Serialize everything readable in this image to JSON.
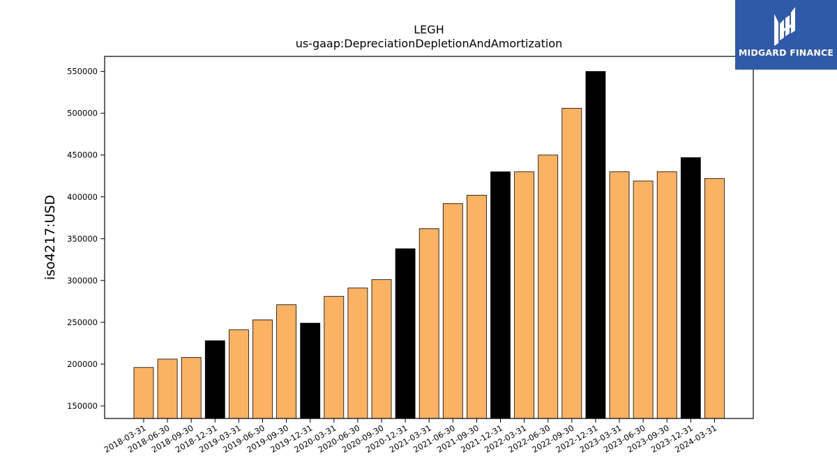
{
  "brand": {
    "name": "MIDGARD FINANCE",
    "bg_color": "#2e5aa8"
  },
  "chart_data": {
    "type": "bar",
    "title": "LEGH",
    "subtitle": "us-gaap:DepreciationDepletionAndAmortization",
    "xlabel": "",
    "ylabel": "iso4217:USD",
    "ylim": [
      135000,
      568000
    ],
    "yticks": [
      150000,
      200000,
      250000,
      300000,
      350000,
      400000,
      450000,
      500000,
      550000
    ],
    "colors": {
      "quarter": "#fbb262",
      "year_end": "#000000"
    },
    "categories": [
      "2018-03-31",
      "2018-06-30",
      "2018-09-30",
      "2018-12-31",
      "2019-03-31",
      "2019-06-30",
      "2019-09-30",
      "2019-12-31",
      "2020-03-31",
      "2020-06-30",
      "2020-09-30",
      "2020-12-31",
      "2021-03-31",
      "2021-06-30",
      "2021-09-30",
      "2021-12-31",
      "2022-03-31",
      "2022-06-30",
      "2022-09-30",
      "2022-12-31",
      "2023-03-31",
      "2023-06-30",
      "2023-09-30",
      "2023-12-31",
      "2024-03-31"
    ],
    "values": [
      196000,
      206000,
      208000,
      228000,
      241000,
      253000,
      271000,
      249000,
      281000,
      291000,
      301000,
      338000,
      362000,
      392000,
      402000,
      430000,
      430000,
      450000,
      506000,
      550000,
      430000,
      419000,
      430000,
      447000,
      422000
    ],
    "year_end": [
      false,
      false,
      false,
      true,
      false,
      false,
      false,
      true,
      false,
      false,
      false,
      true,
      false,
      false,
      false,
      true,
      false,
      false,
      false,
      true,
      false,
      false,
      false,
      true,
      false
    ]
  }
}
